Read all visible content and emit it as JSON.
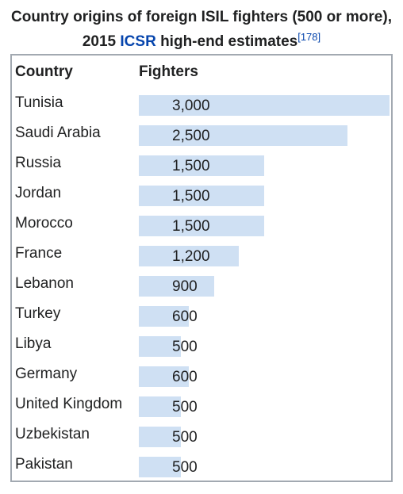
{
  "caption": {
    "text_before_link": "Country origins of foreign ISIL fighters (500 or more), 2015 ",
    "link_text": "ICSR",
    "text_after_link": " high-end estimates",
    "citation": "[178]"
  },
  "headers": {
    "country": "Country",
    "fighters": "Fighters"
  },
  "chart_data": {
    "type": "bar",
    "title": "Country origins of foreign ISIL fighters (500 or more), 2015 ICSR high-end estimates",
    "xlabel": "Country",
    "ylabel": "Fighters",
    "categories": [
      "Tunisia",
      "Saudi Arabia",
      "Russia",
      "Jordan",
      "Morocco",
      "France",
      "Lebanon",
      "Turkey",
      "Libya",
      "Germany",
      "United Kingdom",
      "Uzbekistan",
      "Pakistan"
    ],
    "values": [
      3000,
      2500,
      1500,
      1500,
      1500,
      1200,
      900,
      600,
      500,
      600,
      500,
      500,
      500
    ],
    "labels": [
      "3,000",
      "2,500",
      "1,500",
      "1,500",
      "1,500",
      "1,200",
      "900",
      "600",
      "500",
      "600",
      "500",
      "500",
      "500"
    ],
    "bar_color": "#cfe0f3",
    "grid": false
  }
}
